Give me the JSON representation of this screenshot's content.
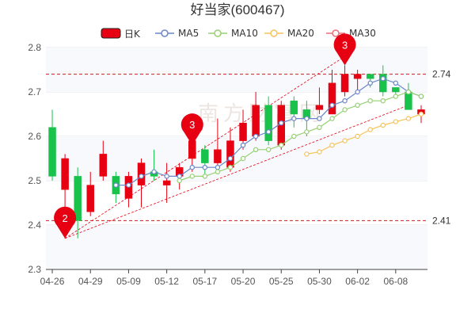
{
  "chart_data": {
    "type": "candlestick",
    "title": "好当家(600467)",
    "legend": {
      "placement": "top-center",
      "items": [
        {
          "label": "日K",
          "kind": "candle",
          "color": "#e60012"
        },
        {
          "label": "MA5",
          "kind": "line",
          "color": "#6a86c8"
        },
        {
          "label": "MA10",
          "kind": "line",
          "color": "#96d073"
        },
        {
          "label": "MA20",
          "kind": "line",
          "color": "#f5c45a"
        },
        {
          "label": "MA30",
          "kind": "line",
          "color": "#ea6f78"
        }
      ]
    },
    "x_tick_labels": [
      "04-26",
      "04-29",
      "05-09",
      "05-12",
      "05-17",
      "05-20",
      "05-25",
      "05-30",
      "06-02",
      "06-08"
    ],
    "x_tick_index": [
      0,
      3,
      6,
      9,
      12,
      15,
      18,
      21,
      24,
      27
    ],
    "ylim": [
      2.3,
      2.8
    ],
    "y_ticks": [
      2.3,
      2.4,
      2.5,
      2.6,
      2.7,
      2.8
    ],
    "y_tick_labels": [
      "2.3",
      "2.4",
      "2.5",
      "2.6",
      "2.7",
      "2.8"
    ],
    "grid": "horizontal",
    "up_color": "#e60012",
    "down_color": "#19c24b",
    "candles": [
      {
        "o": 2.62,
        "c": 2.51,
        "h": 2.66,
        "l": 2.5
      },
      {
        "o": 2.48,
        "c": 2.55,
        "h": 2.56,
        "l": 2.37
      },
      {
        "o": 2.51,
        "c": 2.41,
        "h": 2.53,
        "l": 2.37
      },
      {
        "o": 2.43,
        "c": 2.49,
        "h": 2.52,
        "l": 2.42
      },
      {
        "o": 2.51,
        "c": 2.56,
        "h": 2.59,
        "l": 2.5
      },
      {
        "o": 2.51,
        "c": 2.47,
        "h": 2.52,
        "l": 2.45
      },
      {
        "o": 2.46,
        "c": 2.51,
        "h": 2.52,
        "l": 2.44
      },
      {
        "o": 2.49,
        "c": 2.54,
        "h": 2.55,
        "l": 2.44
      },
      {
        "o": 2.52,
        "c": 2.51,
        "h": 2.57,
        "l": 2.5
      },
      {
        "o": 2.49,
        "c": 2.5,
        "h": 2.54,
        "l": 2.45
      },
      {
        "o": 2.51,
        "c": 2.53,
        "h": 2.54,
        "l": 2.48
      },
      {
        "o": 2.55,
        "c": 2.59,
        "h": 2.61,
        "l": 2.52
      },
      {
        "o": 2.57,
        "c": 2.54,
        "h": 2.58,
        "l": 2.51
      },
      {
        "o": 2.54,
        "c": 2.57,
        "h": 2.64,
        "l": 2.53
      },
      {
        "o": 2.53,
        "c": 2.59,
        "h": 2.62,
        "l": 2.52
      },
      {
        "o": 2.59,
        "c": 2.63,
        "h": 2.66,
        "l": 2.57
      },
      {
        "o": 2.6,
        "c": 2.67,
        "h": 2.7,
        "l": 2.59
      },
      {
        "o": 2.67,
        "c": 2.59,
        "h": 2.69,
        "l": 2.58
      },
      {
        "o": 2.58,
        "c": 2.67,
        "h": 2.68,
        "l": 2.57
      },
      {
        "o": 2.68,
        "c": 2.65,
        "h": 2.69,
        "l": 2.62
      },
      {
        "o": 2.66,
        "c": 2.64,
        "h": 2.68,
        "l": 2.6
      },
      {
        "o": 2.66,
        "c": 2.67,
        "h": 2.71,
        "l": 2.65
      },
      {
        "o": 2.65,
        "c": 2.72,
        "h": 2.75,
        "l": 2.65
      },
      {
        "o": 2.7,
        "c": 2.74,
        "h": 2.76,
        "l": 2.69
      },
      {
        "o": 2.73,
        "c": 2.74,
        "h": 2.75,
        "l": 2.7
      },
      {
        "o": 2.74,
        "c": 2.73,
        "h": 2.74,
        "l": 2.71
      },
      {
        "o": 2.74,
        "c": 2.7,
        "h": 2.76,
        "l": 2.69
      },
      {
        "o": 2.71,
        "c": 2.7,
        "h": 2.71,
        "l": 2.69
      },
      {
        "o": 2.7,
        "c": 2.66,
        "h": 2.72,
        "l": 2.66
      },
      {
        "o": 2.65,
        "c": 2.66,
        "h": 2.67,
        "l": 2.63
      }
    ],
    "series": [
      {
        "name": "MA5",
        "color": "#6a86c8",
        "values": [
          null,
          null,
          null,
          null,
          null,
          2.49,
          2.49,
          2.51,
          2.52,
          2.51,
          2.51,
          2.53,
          2.53,
          2.53,
          2.55,
          2.58,
          2.6,
          2.61,
          2.63,
          2.64,
          2.64,
          2.64,
          2.67,
          2.68,
          2.7,
          2.72,
          2.73,
          2.72,
          2.7,
          2.69
        ]
      },
      {
        "name": "MA10",
        "color": "#96d073",
        "values": [
          null,
          null,
          null,
          null,
          null,
          null,
          null,
          null,
          null,
          null,
          2.5,
          2.51,
          2.51,
          2.52,
          2.53,
          2.55,
          2.57,
          2.57,
          2.58,
          2.6,
          2.61,
          2.62,
          2.64,
          2.66,
          2.67,
          2.68,
          2.68,
          2.69,
          2.7,
          2.69
        ]
      },
      {
        "name": "MA20",
        "color": "#f5c45a",
        "values": [
          null,
          null,
          null,
          null,
          null,
          null,
          null,
          null,
          null,
          null,
          null,
          null,
          null,
          null,
          null,
          null,
          null,
          null,
          null,
          null,
          2.56,
          2.565,
          2.58,
          2.59,
          2.6,
          2.615,
          2.625,
          2.633,
          2.64,
          2.65
        ]
      },
      {
        "name": "MA30",
        "color": "#ea6f78",
        "values": []
      }
    ],
    "reference_lines": [
      {
        "label": "2.74",
        "value": 2.74,
        "color": "#c81e1e"
      },
      {
        "label": "2.41",
        "value": 2.41,
        "color": "#c81e1e"
      }
    ],
    "trend_lines": [
      {
        "color": "#e60012",
        "from": {
          "index": 1,
          "value": 2.37
        },
        "to": {
          "index": 23,
          "value": 2.78
        }
      },
      {
        "color": "#e60012",
        "from": {
          "index": 1,
          "value": 2.37
        },
        "to": {
          "index": 28,
          "value": 2.67
        }
      }
    ],
    "markers": [
      {
        "label": "2",
        "index": 1,
        "value": 2.37,
        "color": "#e60012"
      },
      {
        "label": "3",
        "index": 11,
        "value": 2.58,
        "color": "#e60012"
      },
      {
        "label": "3",
        "index": 23,
        "value": 2.76,
        "color": "#e60012"
      }
    ],
    "watermark": "南方财富网"
  }
}
